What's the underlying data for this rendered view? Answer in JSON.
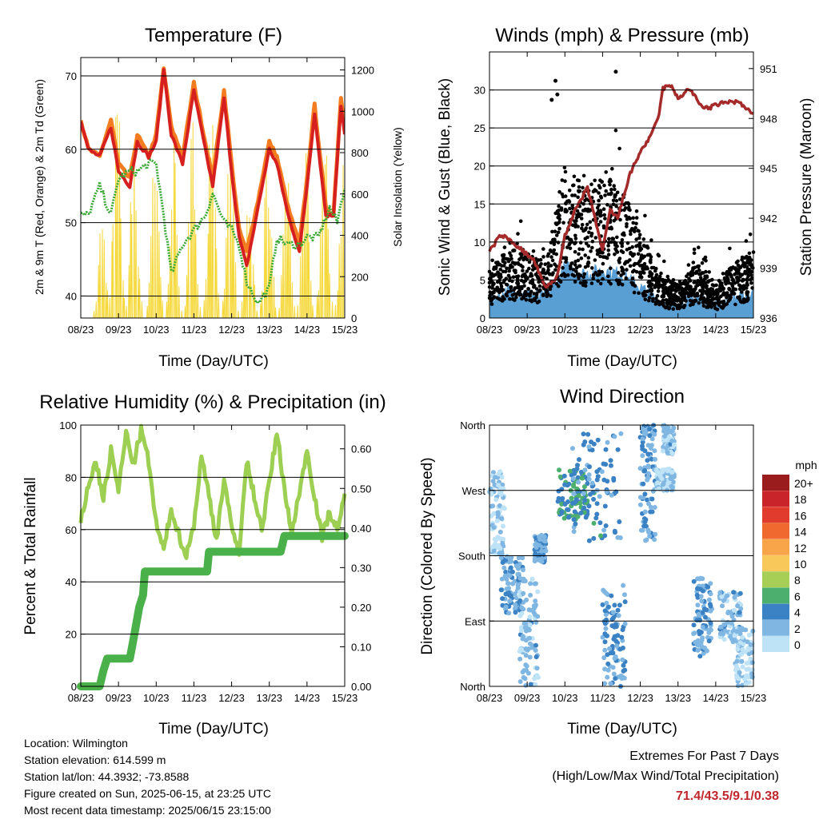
{
  "colors": {
    "t2m": "#d62020",
    "t9m": "#f47c20",
    "td": "#3aaa35",
    "solar": "#f5d83a",
    "wind": "#5a9fd4",
    "gust": "#000000",
    "pressure": "#a52a2a",
    "rh": "#9ccf52",
    "precip": "#4ab04a",
    "extremes": "#c0272d"
  },
  "chart_data": [
    {
      "type": "line",
      "title": "Temperature (F)",
      "xlabel": "Time (Day/UTC)",
      "ylabel": "2m & 9m T (Red, Orange) & 2m Td (Green)",
      "y2label": "Solar Insolation (Yellow)",
      "x_ticks": [
        "08/23",
        "09/23",
        "10/23",
        "11/23",
        "12/23",
        "13/23",
        "14/23",
        "15/23"
      ],
      "ylim": [
        37,
        72.5
      ],
      "y_ticks": [
        40,
        50,
        60,
        70
      ],
      "y2lim": [
        0,
        1260
      ],
      "y2_ticks": [
        0,
        200,
        400,
        600,
        800,
        1000,
        1200
      ],
      "grid": true,
      "series": [
        {
          "key": "t9m",
          "x": [
            0,
            0.2,
            0.5,
            0.8,
            1.0,
            1.3,
            1.5,
            1.8,
            2.0,
            2.2,
            2.4,
            2.7,
            3.0,
            3.3,
            3.5,
            3.8,
            4.0,
            4.2,
            4.4,
            4.7,
            5.0,
            5.2,
            5.5,
            5.8,
            6.0,
            6.2,
            6.5,
            6.7,
            6.9,
            7.0
          ],
          "y": [
            64,
            60,
            59,
            64,
            58,
            56,
            62,
            59,
            62,
            71,
            63,
            59,
            69,
            61,
            56,
            68,
            58,
            49,
            46,
            53,
            61,
            59,
            52,
            47,
            56,
            66,
            52,
            51,
            67,
            63
          ]
        },
        {
          "key": "t2m",
          "x": [
            0,
            0.2,
            0.5,
            0.8,
            1.0,
            1.3,
            1.5,
            1.8,
            2.0,
            2.2,
            2.4,
            2.7,
            3.0,
            3.3,
            3.5,
            3.8,
            4.0,
            4.2,
            4.4,
            4.7,
            5.0,
            5.2,
            5.5,
            5.8,
            6.0,
            6.2,
            6.5,
            6.7,
            6.9,
            7.0
          ],
          "y": [
            64,
            60,
            59,
            63,
            57,
            55,
            61,
            59,
            61,
            71,
            62,
            58,
            68,
            60,
            55,
            67,
            57,
            48,
            44,
            52,
            60,
            58,
            51,
            46,
            55,
            65,
            51,
            51,
            66,
            62
          ]
        },
        {
          "key": "td",
          "x": [
            0,
            0.2,
            0.5,
            0.8,
            1.0,
            1.3,
            1.5,
            1.8,
            2.0,
            2.2,
            2.4,
            2.7,
            3.0,
            3.3,
            3.5,
            3.8,
            4.0,
            4.2,
            4.4,
            4.7,
            5.0,
            5.2,
            5.5,
            5.8,
            6.0,
            6.3,
            6.6,
            6.8,
            7.0
          ],
          "y": [
            51,
            51,
            55,
            51,
            56,
            57,
            57,
            58,
            58,
            51,
            43,
            47,
            49,
            51,
            54,
            50,
            49,
            47,
            42,
            39,
            41,
            48,
            47,
            47,
            48,
            48,
            52,
            50,
            55
          ]
        }
      ],
      "solar_peak_days": [
        0.55,
        0.95,
        1.4,
        1.95,
        2.45,
        2.95,
        3.45,
        3.95,
        4.45,
        4.95,
        5.45,
        5.95,
        6.45,
        6.95
      ],
      "solar_peak_values": [
        560,
        1250,
        1000,
        1060,
        900,
        1000,
        1050,
        1000,
        700,
        900,
        950,
        1000,
        1060,
        900
      ]
    },
    {
      "type": "scatter",
      "title": "Winds (mph) & Pressure (mb)",
      "xlabel": "Time (Day/UTC)",
      "ylabel": "Sonic Wind & Gust (Blue, Black)",
      "y2label": "Station Pressure (Maroon)",
      "x_ticks": [
        "08/23",
        "09/23",
        "10/23",
        "11/23",
        "12/23",
        "13/23",
        "14/23",
        "15/23"
      ],
      "ylim": [
        0,
        35
      ],
      "y_ticks": [
        0,
        5,
        10,
        15,
        20,
        25,
        30
      ],
      "y2lim": [
        936,
        952
      ],
      "y2_ticks": [
        936,
        939,
        942,
        945,
        948,
        951
      ],
      "grid": true,
      "gust_level_days": [
        0,
        0.5,
        1.0,
        1.5,
        2.0,
        2.5,
        3.0,
        3.5,
        4.0,
        4.5,
        5.0,
        5.5,
        6.0,
        6.5,
        7.0
      ],
      "gust_level_values": [
        4,
        7,
        6,
        5,
        14,
        12,
        13,
        12,
        8,
        4,
        3,
        5,
        3,
        5,
        6
      ],
      "gust_outliers": [
        {
          "x": 1.75,
          "y": 31.2
        },
        {
          "x": 3.35,
          "y": 32.4
        },
        {
          "x": 1.8,
          "y": 29.4
        },
        {
          "x": 1.65,
          "y": 28.7
        }
      ],
      "pressure": {
        "x": [
          0,
          0.3,
          0.6,
          0.9,
          1.2,
          1.4,
          1.5,
          1.8,
          2.0,
          2.3,
          2.6,
          2.8,
          3.0,
          3.2,
          3.4,
          3.7,
          4.0,
          4.3,
          4.5,
          4.6,
          4.8,
          5.0,
          5.3,
          5.6,
          5.8,
          6.0,
          6.3,
          6.6,
          7.0
        ],
        "y": [
          940,
          941,
          940.6,
          940,
          939.4,
          938.2,
          937.8,
          938.5,
          941,
          942.6,
          943.8,
          942,
          940,
          942.5,
          942,
          944.5,
          946,
          947,
          948.3,
          949.8,
          950,
          949.2,
          949.8,
          948.8,
          948.6,
          948.8,
          949,
          949,
          948.2
        ]
      }
    },
    {
      "type": "line",
      "title": "Relative Humidity (%) & Precipitation (in)",
      "xlabel": "Time (Day/UTC)",
      "ylabel": "Percent & Total Rainfall",
      "x_ticks": [
        "08/23",
        "09/23",
        "10/23",
        "11/23",
        "12/23",
        "13/23",
        "14/23",
        "15/23"
      ],
      "ylim": [
        0,
        100
      ],
      "y_ticks": [
        0,
        20,
        40,
        60,
        80,
        100
      ],
      "y2lim": [
        0,
        0.66
      ],
      "y2_ticks": [
        "0.00",
        "0.10",
        "0.20",
        "0.30",
        "0.40",
        "0.50",
        "0.60"
      ],
      "grid": true,
      "series": [
        {
          "key": "rh",
          "x": [
            0,
            0.2,
            0.4,
            0.6,
            0.8,
            1.0,
            1.2,
            1.4,
            1.6,
            1.8,
            2.0,
            2.2,
            2.4,
            2.6,
            2.8,
            3.0,
            3.2,
            3.4,
            3.6,
            3.8,
            4.0,
            4.2,
            4.4,
            4.6,
            4.8,
            5.0,
            5.2,
            5.4,
            5.6,
            5.8,
            6.0,
            6.2,
            6.4,
            6.6,
            6.8,
            7.0
          ],
          "y": [
            63,
            77,
            86,
            72,
            90,
            75,
            97,
            85,
            98,
            86,
            62,
            52,
            68,
            58,
            50,
            62,
            88,
            73,
            56,
            80,
            60,
            52,
            86,
            73,
            60,
            78,
            97,
            76,
            58,
            75,
            90,
            73,
            57,
            67,
            60,
            72
          ]
        },
        {
          "key": "precip",
          "x": [
            0,
            0.5,
            0.6,
            0.7,
            1.3,
            1.4,
            1.55,
            1.65,
            1.7,
            2.5,
            3.0,
            3.35,
            3.4,
            5.0,
            5.3,
            5.4,
            6.5,
            7.0
          ],
          "y": [
            0,
            0,
            0.04,
            0.07,
            0.07,
            0.12,
            0.2,
            0.23,
            0.29,
            0.29,
            0.29,
            0.29,
            0.34,
            0.34,
            0.34,
            0.38,
            0.38,
            0.38
          ]
        }
      ]
    },
    {
      "type": "scatter",
      "title": "Wind Direction",
      "xlabel": "Time (Day/UTC)",
      "ylabel": "Direction (Colored By Speed)",
      "x_ticks": [
        "08/23",
        "09/23",
        "10/23",
        "11/23",
        "12/23",
        "13/23",
        "14/23",
        "15/23"
      ],
      "y_ticks": [
        "North",
        "East",
        "South",
        "West",
        "North"
      ],
      "ylim": [
        0,
        360
      ],
      "grid": true,
      "legend": {
        "title": "mph",
        "labels": [
          "20+",
          "18",
          "16",
          "14",
          "12",
          "10",
          "8",
          "6",
          "4",
          "2",
          "0"
        ],
        "colors": [
          "#9b1c1c",
          "#c8242a",
          "#e03b2c",
          "#f0692f",
          "#f8a54a",
          "#f8c95a",
          "#a8cf55",
          "#4caf6e",
          "#3b82c4",
          "#80b7e2",
          "#bfe3f6"
        ]
      },
      "clusters": [
        {
          "x0": 0.0,
          "x1": 0.4,
          "d0": 180,
          "d1": 300,
          "speed": 1
        },
        {
          "x0": 0.3,
          "x1": 0.9,
          "d0": 100,
          "d1": 180,
          "speed": 3
        },
        {
          "x0": 0.8,
          "x1": 1.3,
          "d0": 0,
          "d1": 150,
          "speed": 2
        },
        {
          "x0": 1.2,
          "x1": 1.5,
          "d0": 170,
          "d1": 210,
          "speed": 3
        },
        {
          "x0": 1.8,
          "x1": 2.6,
          "d0": 230,
          "d1": 300,
          "speed": 5
        },
        {
          "x0": 2.2,
          "x1": 3.5,
          "d0": 200,
          "d1": 350,
          "speed": 4
        },
        {
          "x0": 3.0,
          "x1": 3.6,
          "d0": 0,
          "d1": 140,
          "speed": 3
        },
        {
          "x0": 4.0,
          "x1": 4.4,
          "d0": 200,
          "d1": 360,
          "speed": 3
        },
        {
          "x0": 4.4,
          "x1": 4.9,
          "d0": 270,
          "d1": 300,
          "speed": 1
        },
        {
          "x0": 4.6,
          "x1": 4.9,
          "d0": 320,
          "d1": 360,
          "speed": 2
        },
        {
          "x0": 5.4,
          "x1": 5.9,
          "d0": 40,
          "d1": 150,
          "speed": 3
        },
        {
          "x0": 6.1,
          "x1": 6.7,
          "d0": 60,
          "d1": 130,
          "speed": 2
        },
        {
          "x0": 6.5,
          "x1": 7.0,
          "d0": 0,
          "d1": 80,
          "speed": 1
        }
      ]
    }
  ],
  "info": {
    "location": "Location: Wilmington",
    "elevation": "Station elevation: 614.599 m",
    "latlon": "Station lat/lon: 44.3932; -73.8588",
    "created": "Figure created on Sun, 2025-06-15, at 23:25 UTC",
    "timestamp": "Most recent data timestamp: 2025/06/15 23:15:00"
  },
  "extremes": {
    "title": "Extremes For Past 7 Days",
    "subtitle": "(High/Low/Max Wind/Total Precipitation)",
    "values": "71.4/43.5/9.1/0.38"
  }
}
